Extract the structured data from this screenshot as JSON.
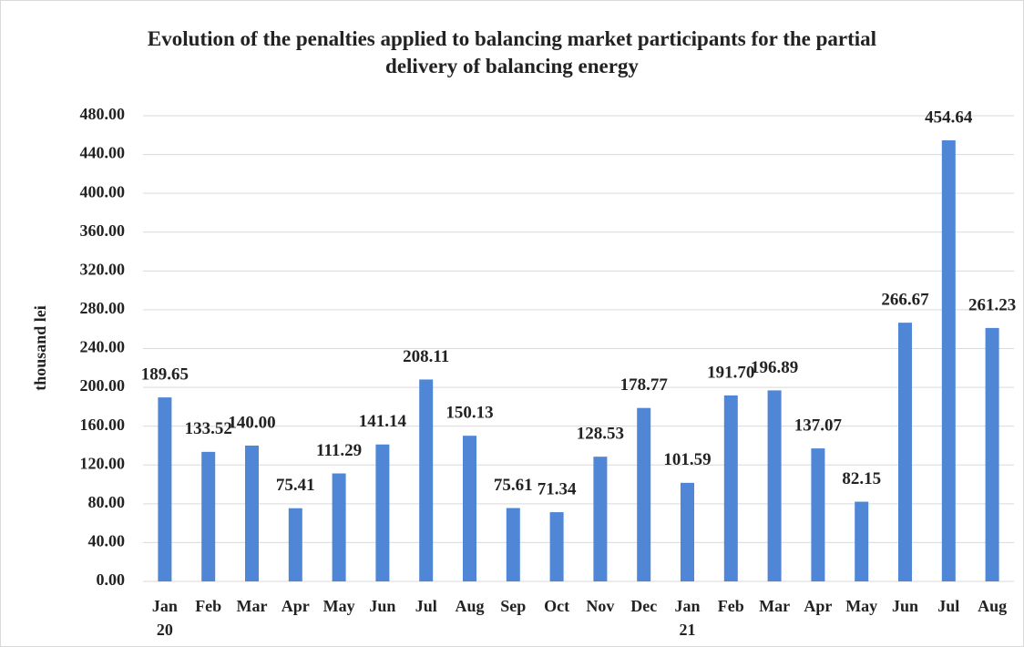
{
  "chart_data": {
    "type": "bar",
    "title": "Evolution of the penalties applied to balancing market participants for the partial delivery of balancing energy",
    "y_label": "thousand lei",
    "categories": [
      "Jan 20",
      "Feb",
      "Mar",
      "Apr",
      "May",
      "Jun",
      "Jul",
      "Aug",
      "Sep",
      "Oct",
      "Nov",
      "Dec",
      "Jan 21",
      "Feb",
      "Mar",
      "Apr",
      "May",
      "Jun",
      "Jul",
      "Aug"
    ],
    "values": [
      189.65,
      133.52,
      140,
      75.41,
      111.29,
      141.14,
      208.11,
      150.13,
      75.61,
      71.34,
      128.53,
      178.77,
      101.59,
      191.7,
      196.89,
      137.07,
      82.15,
      266.67,
      454.64,
      261.23
    ],
    "value_labels": [
      "189.65",
      "133.52",
      "140.00",
      "75.41",
      "111.29",
      "141.14",
      "208.11",
      "150.13",
      "75.61",
      "71.34",
      "128.53",
      "178.77",
      "101.59",
      "191.70",
      "196.89",
      "137.07",
      "82.15",
      "266.67",
      "454.64",
      "261.23"
    ],
    "color": "#4f87d6",
    "ylim": [
      0,
      480
    ],
    "yticks": [
      {
        "value": 0,
        "label": "0.00"
      },
      {
        "value": 40,
        "label": "40.00"
      },
      {
        "value": 80,
        "label": "80.00"
      },
      {
        "value": 120,
        "label": "120.00"
      },
      {
        "value": 160,
        "label": "160.00"
      },
      {
        "value": 200,
        "label": "200.00"
      },
      {
        "value": 240,
        "label": "240.00"
      },
      {
        "value": 280,
        "label": "280.00"
      },
      {
        "value": 320,
        "label": "320.00"
      },
      {
        "value": 360,
        "label": "360.00"
      },
      {
        "value": 400,
        "label": "400.00"
      },
      {
        "value": 440,
        "label": "440.00"
      },
      {
        "value": 480,
        "label": "480.00"
      }
    ],
    "grid": true
  }
}
